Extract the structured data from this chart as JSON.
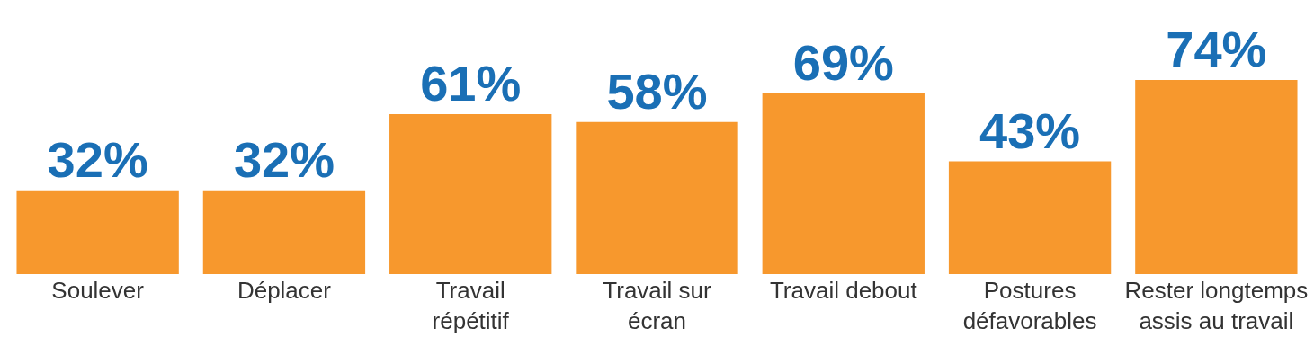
{
  "chart_data": {
    "type": "bar",
    "categories": [
      "Soulever",
      "Déplacer",
      "Travail répétitif",
      "Travail sur écran",
      "Travail debout",
      "Postures défavorables",
      "Rester longtemps assis au travail"
    ],
    "values": [
      32,
      32,
      61,
      58,
      69,
      43,
      74
    ],
    "value_labels": [
      "32%",
      "32%",
      "61%",
      "58%",
      "69%",
      "43%",
      "74%"
    ],
    "color": "#f7982d"
  }
}
